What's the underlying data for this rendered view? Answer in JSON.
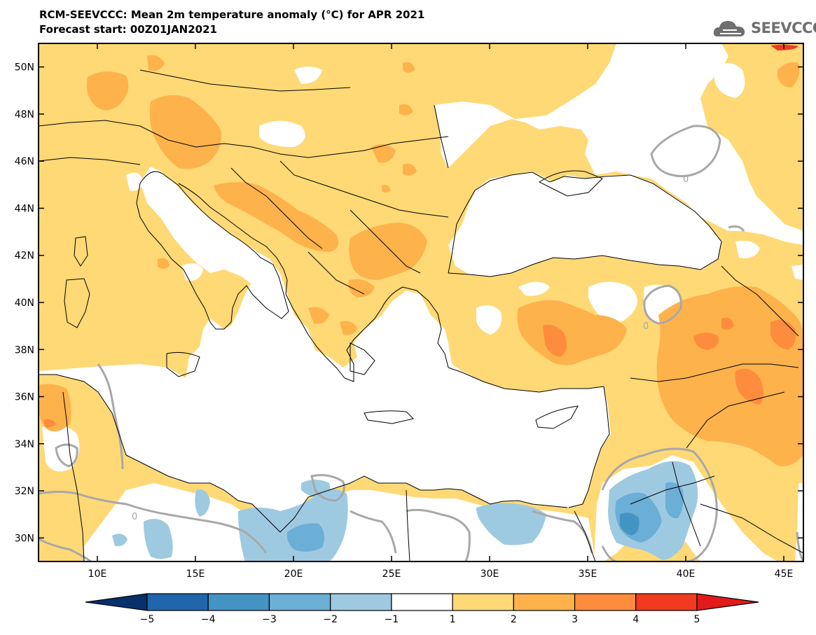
{
  "header": {
    "title": "RCM-SEEVCCC: Mean 2m temperature anomaly (°C) for APR 2021",
    "subtitle": "Forecast start: 00Z01JAN2021"
  },
  "logo": {
    "text": "SEEVCCC",
    "icon": "cloud-icon"
  },
  "map": {
    "lon_range": [
      7,
      46
    ],
    "lat_range": [
      29,
      51
    ],
    "lat_ticks": [
      "30N",
      "32N",
      "34N",
      "36N",
      "38N",
      "40N",
      "42N",
      "44N",
      "46N",
      "48N",
      "50N"
    ],
    "lon_ticks": [
      "10E",
      "15E",
      "20E",
      "25E",
      "30E",
      "35E",
      "40E",
      "45E"
    ],
    "contour_label": "0"
  },
  "colorbar": {
    "labels": [
      "−5",
      "−4",
      "−3",
      "−2",
      "−1",
      "1",
      "2",
      "3",
      "4",
      "5"
    ],
    "colors": [
      "#08306b",
      "#2166ac",
      "#4393c3",
      "#6baed6",
      "#9ecae1",
      "#ffffff",
      "#fed976",
      "#feb24c",
      "#fd8d3c",
      "#f03b20",
      "#e31a1c"
    ]
  }
}
